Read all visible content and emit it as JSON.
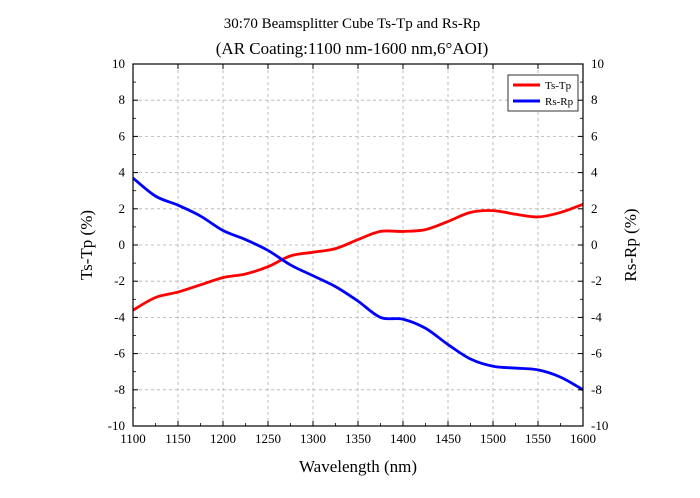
{
  "chart_data": {
    "type": "line",
    "title": "30:70 Beamsplitter Cube Ts-Tp and Rs-Rp",
    "subtitle": "(AR Coating:1100 nm-1600 nm,6°AOI)",
    "xlabel": "Wavelength (nm)",
    "ylabel": "Ts-Tp (%)",
    "y2label": "Rs-Rp (%)",
    "xlim": [
      1100,
      1600
    ],
    "ylim": [
      -10,
      10
    ],
    "y2lim": [
      -10,
      10
    ],
    "x_ticks": [
      "1100",
      "1150",
      "1200",
      "1250",
      "1300",
      "1350",
      "1400",
      "1450",
      "1500",
      "1550",
      "1600"
    ],
    "y_ticks": [
      "-10",
      "-8",
      "-6",
      "-4",
      "-2",
      "0",
      "2",
      "4",
      "6",
      "8",
      "10"
    ],
    "grid": true,
    "legend_position": "top-right",
    "series": [
      {
        "name": "Ts-Tp",
        "color": "#ff0000",
        "x": [
          1100,
          1125,
          1150,
          1175,
          1200,
          1225,
          1250,
          1275,
          1300,
          1325,
          1350,
          1375,
          1400,
          1425,
          1450,
          1475,
          1500,
          1525,
          1550,
          1575,
          1600
        ],
        "y": [
          -3.6,
          -2.9,
          -2.6,
          -2.2,
          -1.8,
          -1.6,
          -1.2,
          -0.6,
          -0.4,
          -0.2,
          0.3,
          0.75,
          0.75,
          0.85,
          1.3,
          1.8,
          1.9,
          1.7,
          1.55,
          1.8,
          2.25
        ]
      },
      {
        "name": "Rs-Rp",
        "color": "#0000ff",
        "x": [
          1100,
          1125,
          1150,
          1175,
          1200,
          1225,
          1250,
          1275,
          1300,
          1325,
          1350,
          1375,
          1400,
          1425,
          1450,
          1475,
          1500,
          1525,
          1550,
          1575,
          1600
        ],
        "y": [
          3.7,
          2.7,
          2.2,
          1.6,
          0.8,
          0.3,
          -0.3,
          -1.1,
          -1.7,
          -2.3,
          -3.1,
          -4.0,
          -4.1,
          -4.6,
          -5.5,
          -6.3,
          -6.7,
          -6.8,
          -6.9,
          -7.3,
          -8.0
        ]
      }
    ]
  }
}
